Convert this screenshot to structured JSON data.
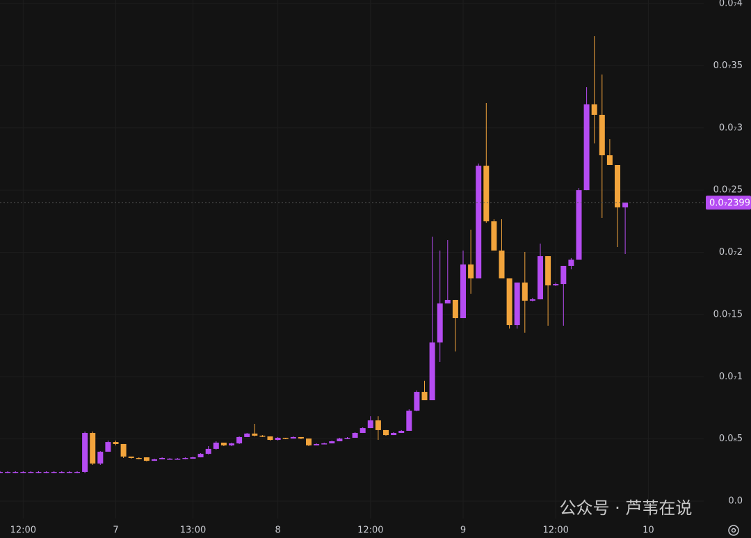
{
  "chart_data": {
    "type": "candlestick",
    "up_color": "#b54cf2",
    "down_color": "#f2a43c",
    "grid": true,
    "ylim": [
      0,
      4e-08
    ],
    "yticks": [
      {
        "value": 0,
        "label": "0.0"
      },
      {
        "value": 5e-09,
        "label": "0.0₈5"
      },
      {
        "value": 1e-08,
        "label": "0.0₇1"
      },
      {
        "value": 1.5e-08,
        "label": "0.0₇15"
      },
      {
        "value": 2e-08,
        "label": "0.0₇2"
      },
      {
        "value": 2.5e-08,
        "label": "0.0₇25"
      },
      {
        "value": 3e-08,
        "label": "0.0₇3"
      },
      {
        "value": 3.5e-08,
        "label": "0.0₇35"
      },
      {
        "value": 4e-08,
        "label": "0.0₇4"
      }
    ],
    "xticks": [
      {
        "value": 3,
        "label": "12:00"
      },
      {
        "value": 15,
        "label": "7"
      },
      {
        "value": 25,
        "label": "13:00"
      },
      {
        "value": 36,
        "label": "8"
      },
      {
        "value": 48,
        "label": "12:00"
      },
      {
        "value": 60,
        "label": "9"
      },
      {
        "value": 72,
        "label": "12:00"
      },
      {
        "value": 84,
        "label": "10"
      }
    ],
    "last_price": {
      "value": 2.399e-08,
      "label": "0.0₇2399"
    },
    "watermark": "公众号 · 芦苇在说",
    "open": [
      2.29e-09,
      2.29e-09,
      2.29e-09,
      2.29e-09,
      2.29e-09,
      2.29e-09,
      2.29e-09,
      2.29e-09,
      2.29e-09,
      2.29e-09,
      2.29e-09,
      2.35e-09,
      5.48e-09,
      3.02e-09,
      3.97e-09,
      4.75e-09,
      4.59e-09,
      3.58e-09,
      3.47e-09,
      3.52e-09,
      3.24e-09,
      3.36e-09,
      3.41e-09,
      3.41e-09,
      3.41e-09,
      3.41e-09,
      3.52e-09,
      3.8e-09,
      4.2e-09,
      4.7e-09,
      4.48e-09,
      4.64e-09,
      5.15e-09,
      5.43e-09,
      5.26e-09,
      5.2e-09,
      4.92e-09,
      5.09e-09,
      5.03e-09,
      5.15e-09,
      5.03e-09,
      4.48e-09,
      4.59e-09,
      4.64e-09,
      4.81e-09,
      5.03e-09,
      5.09e-09,
      5.48e-09,
      5.87e-09,
      6.49e-09,
      5.71e-09,
      5.31e-09,
      5.48e-09,
      5.65e-09,
      7.27e-09,
      8.78e-09,
      8.11e-09,
      1.275e-08,
      1.589e-08,
      1.617e-08,
      1.471e-08,
      1.902e-08,
      1.79e-08,
      2.696e-08,
      2.249e-08,
      2.014e-08,
      1.79e-08,
      1.415e-08,
      1.757e-08,
      1.611e-08,
      1.622e-08,
      1.969e-08,
      1.734e-08,
      1.745e-08,
      1.891e-08,
      1.941e-08,
      2.5e-08,
      3.189e-08,
      3.105e-08,
      2.78e-08,
      2.702e-08,
      2.361e-08
    ],
    "high": [
      2.41e-09,
      2.41e-09,
      2.41e-09,
      2.41e-09,
      2.41e-09,
      2.41e-09,
      2.41e-09,
      2.41e-09,
      2.41e-09,
      2.41e-09,
      2.41e-09,
      5.59e-09,
      5.59e-09,
      4.02e-09,
      4.87e-09,
      4.87e-09,
      4.59e-09,
      3.58e-09,
      3.52e-09,
      3.52e-09,
      3.41e-09,
      3.52e-09,
      3.47e-09,
      3.47e-09,
      3.52e-09,
      3.58e-09,
      3.86e-09,
      4.42e-09,
      4.81e-09,
      4.7e-09,
      4.7e-09,
      5.2e-09,
      5.48e-09,
      6.21e-09,
      5.31e-09,
      5.2e-09,
      5.15e-09,
      5.09e-09,
      5.2e-09,
      5.15e-09,
      5.03e-09,
      4.64e-09,
      4.7e-09,
      4.87e-09,
      5.09e-09,
      5.15e-09,
      5.54e-09,
      5.93e-09,
      6.82e-09,
      6.82e-09,
      5.71e-09,
      5.54e-09,
      5.71e-09,
      7.38e-09,
      8.89e-09,
      9.68e-09,
      2.126e-08,
      2.014e-08,
      2.098e-08,
      1.617e-08,
      2.014e-08,
      2.182e-08,
      2.713e-08,
      3.2e-08,
      2.266e-08,
      2.266e-08,
      1.79e-08,
      1.757e-08,
      2.003e-08,
      1.634e-08,
      2.07e-08,
      1.969e-08,
      1.757e-08,
      1.891e-08,
      1.953e-08,
      2.517e-08,
      3.328e-08,
      3.737e-08,
      3.429e-08,
      2.909e-08,
      2.702e-08,
      2.399e-08
    ],
    "low": [
      2.24e-09,
      2.24e-09,
      2.24e-09,
      2.24e-09,
      2.24e-09,
      2.24e-09,
      2.24e-09,
      2.24e-09,
      2.24e-09,
      2.24e-09,
      2.24e-09,
      2.24e-09,
      2.91e-09,
      2.91e-09,
      3.97e-09,
      4.48e-09,
      3.47e-09,
      3.41e-09,
      3.36e-09,
      3.19e-09,
      3.24e-09,
      3.36e-09,
      3.36e-09,
      3.36e-09,
      3.36e-09,
      3.41e-09,
      3.52e-09,
      3.75e-09,
      4.14e-09,
      4.42e-09,
      4.42e-09,
      4.59e-09,
      5.15e-09,
      5.2e-09,
      5.15e-09,
      4.87e-09,
      4.87e-09,
      4.98e-09,
      5.03e-09,
      4.98e-09,
      4.42e-09,
      4.48e-09,
      4.59e-09,
      4.64e-09,
      4.81e-09,
      4.98e-09,
      5.09e-09,
      5.48e-09,
      5.87e-09,
      4.92e-09,
      5.26e-09,
      5.31e-09,
      5.48e-09,
      5.65e-09,
      7.22e-09,
      8.11e-09,
      8.11e-09,
      1.119e-08,
      1.589e-08,
      1.203e-08,
      1.471e-08,
      1.667e-08,
      1.79e-08,
      2.238e-08,
      2.014e-08,
      1.79e-08,
      1.387e-08,
      1.387e-08,
      1.354e-08,
      1.605e-08,
      1.622e-08,
      1.41e-08,
      1.729e-08,
      1.41e-08,
      1.863e-08,
      1.941e-08,
      2.5e-08,
      2.875e-08,
      2.277e-08,
      2.702e-08,
      2.042e-08,
      1.986e-08
    ],
    "close": [
      2.35e-09,
      2.35e-09,
      2.35e-09,
      2.35e-09,
      2.35e-09,
      2.35e-09,
      2.35e-09,
      2.35e-09,
      2.35e-09,
      2.35e-09,
      2.35e-09,
      5.48e-09,
      3.02e-09,
      3.97e-09,
      4.75e-09,
      4.59e-09,
      3.58e-09,
      3.47e-09,
      3.41e-09,
      3.24e-09,
      3.36e-09,
      3.47e-09,
      3.41e-09,
      3.41e-09,
      3.47e-09,
      3.52e-09,
      3.8e-09,
      4.2e-09,
      4.7e-09,
      4.48e-09,
      4.64e-09,
      5.15e-09,
      5.43e-09,
      5.26e-09,
      5.2e-09,
      4.92e-09,
      5.09e-09,
      5.03e-09,
      5.15e-09,
      5.03e-09,
      4.48e-09,
      4.59e-09,
      4.64e-09,
      4.81e-09,
      5.03e-09,
      5.09e-09,
      5.48e-09,
      5.87e-09,
      6.49e-09,
      5.71e-09,
      5.31e-09,
      5.48e-09,
      5.65e-09,
      7.27e-09,
      8.78e-09,
      8.11e-09,
      1.275e-08,
      1.589e-08,
      1.617e-08,
      1.471e-08,
      1.902e-08,
      1.79e-08,
      2.696e-08,
      2.249e-08,
      2.014e-08,
      1.79e-08,
      1.415e-08,
      1.757e-08,
      1.611e-08,
      1.622e-08,
      1.969e-08,
      1.734e-08,
      1.745e-08,
      1.891e-08,
      1.941e-08,
      2.5e-08,
      3.189e-08,
      3.105e-08,
      2.78e-08,
      2.702e-08,
      2.361e-08,
      2.399e-08
    ]
  }
}
